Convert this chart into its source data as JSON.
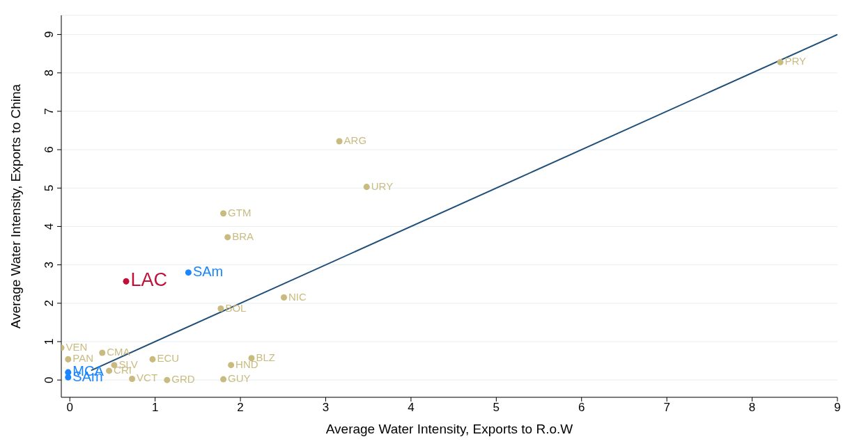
{
  "chart_data": {
    "type": "scatter",
    "xlabel": "Average Water Intensity, Exports to R.o.W",
    "ylabel": "Average Water Intensity, Exports to China",
    "xlim": [
      -0.1,
      9
    ],
    "xticks": [
      0,
      1,
      2,
      3,
      4,
      5,
      6,
      7,
      8,
      9
    ],
    "ylim": [
      -0.45,
      9.5
    ],
    "yticks": [
      0,
      1,
      2,
      3,
      4,
      5,
      6,
      7,
      8,
      9
    ],
    "grid": "y",
    "marker": "circle",
    "series": [
      {
        "type": "line",
        "color": "#1f4e79",
        "marker": "none",
        "x": [
          0.25,
          9
        ],
        "values": [
          0.25,
          9
        ]
      },
      {
        "name": "LAC",
        "color": "#c0103a",
        "x": [
          0.66
        ],
        "values": [
          2.57
        ]
      },
      {
        "name": "SAm",
        "color": "#1a85ff",
        "x": [
          1.39
        ],
        "values": [
          2.8
        ]
      },
      {
        "name": "MCA",
        "color": "#1a85ff",
        "x": [
          -0.02
        ],
        "values": [
          0.2
        ]
      },
      {
        "name": "SAm",
        "color": "#1a85ff",
        "x": [
          -0.02
        ],
        "values": [
          0.07
        ]
      },
      {
        "name": "PRY",
        "color": "#c9bb80",
        "x": [
          8.33
        ],
        "values": [
          8.28
        ]
      },
      {
        "name": "ARG",
        "color": "#c9bb80",
        "x": [
          3.16
        ],
        "values": [
          6.22
        ]
      },
      {
        "name": "URY",
        "color": "#c9bb80",
        "x": [
          3.48
        ],
        "values": [
          5.03
        ]
      },
      {
        "name": "GTM",
        "color": "#c9bb80",
        "x": [
          1.8
        ],
        "values": [
          4.34
        ]
      },
      {
        "name": "BRA",
        "color": "#c9bb80",
        "x": [
          1.85
        ],
        "values": [
          3.72
        ]
      },
      {
        "name": "NIC",
        "color": "#c9bb80",
        "x": [
          2.51
        ],
        "values": [
          2.15
        ]
      },
      {
        "name": "BOL",
        "color": "#c9bb80",
        "x": [
          1.77
        ],
        "values": [
          1.86
        ]
      },
      {
        "name": "VEN",
        "color": "#c9bb80",
        "x": [
          -0.1
        ],
        "values": [
          0.84
        ]
      },
      {
        "name": "PAN",
        "color": "#c9bb80",
        "x": [
          -0.02
        ],
        "values": [
          0.54
        ]
      },
      {
        "name": "CMA",
        "color": "#c9bb80",
        "x": [
          0.38
        ],
        "values": [
          0.71
        ]
      },
      {
        "name": "ECU",
        "color": "#c9bb80",
        "x": [
          0.97
        ],
        "values": [
          0.54
        ]
      },
      {
        "name": "SLV",
        "color": "#c9bb80",
        "x": [
          0.52
        ],
        "values": [
          0.39
        ]
      },
      {
        "name": "CRI",
        "color": "#c9bb80",
        "x": [
          0.46
        ],
        "values": [
          0.24
        ]
      },
      {
        "name": "BLZ",
        "color": "#c9bb80",
        "x": [
          2.13
        ],
        "values": [
          0.57
        ]
      },
      {
        "name": "HND",
        "color": "#c9bb80",
        "x": [
          1.89
        ],
        "values": [
          0.39
        ]
      },
      {
        "name": "GUY",
        "color": "#c9bb80",
        "x": [
          1.8
        ],
        "values": [
          0.02
        ]
      },
      {
        "name": "GRD",
        "color": "#c9bb80",
        "x": [
          1.14
        ],
        "values": [
          0.0
        ]
      },
      {
        "name": "VCT",
        "color": "#c9bb80",
        "x": [
          0.73
        ],
        "values": [
          0.03
        ]
      }
    ]
  }
}
